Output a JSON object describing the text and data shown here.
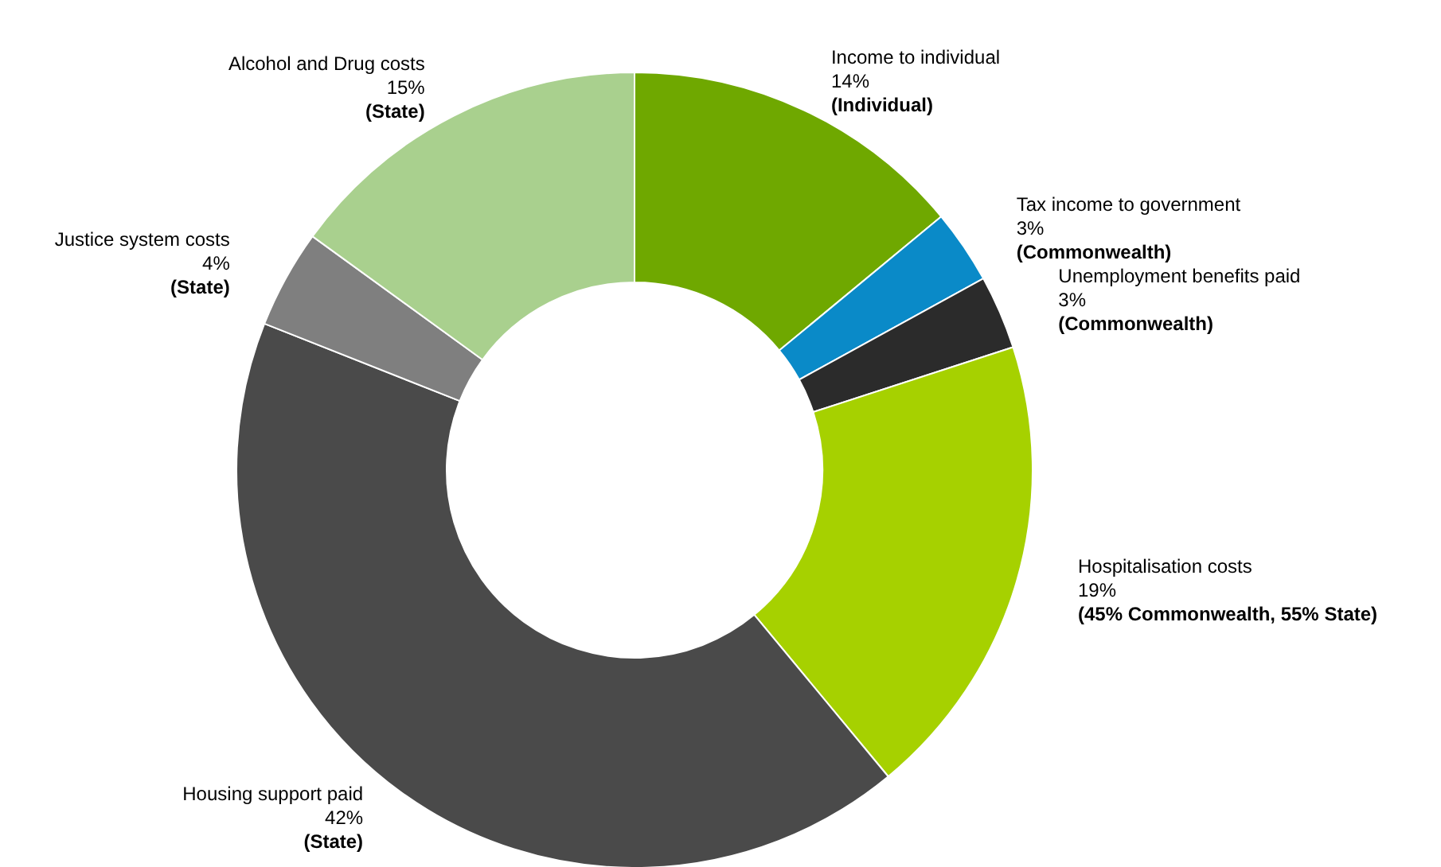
{
  "chart_data": {
    "type": "donut",
    "categories": [
      "Income to individual",
      "Tax income to government",
      "Unemployment benefits paid",
      "Hospitalisation costs",
      "Housing support paid",
      "Justice system costs",
      "Alcohol and Drug costs"
    ],
    "values": [
      14,
      3,
      3,
      19,
      42,
      4,
      15
    ],
    "value_labels": [
      "14%",
      "3%",
      "3%",
      "19%",
      "42%",
      "4%",
      "15%"
    ],
    "colors": [
      "#6fa800",
      "#0a8ac8",
      "#2b2b2b",
      "#a6d100",
      "#4a4a4a",
      "#7f7f7f",
      "#a9d08e"
    ],
    "annotations": [
      "(Individual)",
      "(Commonwealth)",
      "(Commonwealth)",
      "(45% Commonwealth, 55% State)",
      "(State)",
      "(State)",
      "(State)"
    ]
  }
}
